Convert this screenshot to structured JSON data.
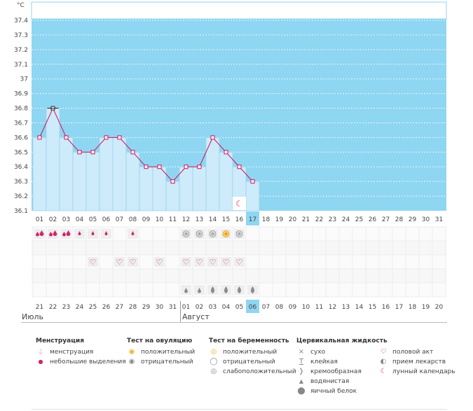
{
  "chart_data": {
    "type": "bar",
    "unit_label": "°C",
    "ylim": [
      36.1,
      37.5
    ],
    "y_ticks": [
      "37.4",
      "37.3",
      "37.2",
      "37.1",
      "37",
      "36.9",
      "36.8",
      "36.7",
      "36.6",
      "36.5",
      "36.4",
      "36.3",
      "36.2",
      "36.1"
    ],
    "cycle_days": [
      "01",
      "02",
      "03",
      "04",
      "05",
      "06",
      "07",
      "08",
      "09",
      "10",
      "11",
      "12",
      "13",
      "14",
      "15",
      "16",
      "17",
      "18",
      "19",
      "20",
      "21",
      "22",
      "23",
      "24",
      "25",
      "26",
      "27",
      "28",
      "29",
      "30",
      "31"
    ],
    "temperatures": [
      36.6,
      36.8,
      36.6,
      36.5,
      36.5,
      36.6,
      36.6,
      36.5,
      36.4,
      36.4,
      36.3,
      36.4,
      36.4,
      36.6,
      36.5,
      36.4,
      36.3
    ],
    "current_day_index": 16,
    "dates": [
      "21",
      "22",
      "23",
      "24",
      "25",
      "26",
      "27",
      "28",
      "29",
      "30",
      "31",
      "01",
      "02",
      "03",
      "04",
      "05",
      "06",
      "07",
      "08",
      "09",
      "10",
      "11",
      "12",
      "13",
      "14",
      "15",
      "16",
      "17",
      "18",
      "19",
      "20"
    ],
    "weekend_date_indices": [
      0,
      6,
      7,
      13,
      14,
      20,
      21,
      27,
      28
    ],
    "current_date_index": 16
  },
  "months": {
    "first": "Июль",
    "second": "Август"
  },
  "rows": {
    "menstruation": [
      "heavy",
      "heavy",
      "heavy",
      "light",
      "light",
      "light",
      "",
      "light"
    ],
    "ovulation_test_indices": [
      11,
      12,
      13,
      14,
      15
    ],
    "ovulation_positive_index": 14,
    "intercourse_indices": [
      4,
      6,
      7,
      9,
      11,
      12,
      13,
      14,
      15
    ],
    "fluid_indices": [
      11,
      12,
      13,
      14,
      15,
      16
    ],
    "lunar_index": 15
  },
  "legend": {
    "menstruation": {
      "title": "Менструация",
      "items": [
        "менструация",
        "небольшие выделения"
      ]
    },
    "ovulation": {
      "title": "Тест на овуляцию",
      "items": [
        "положительный",
        "отрицательный"
      ]
    },
    "pregnancy": {
      "title": "Тест на беременность",
      "items": [
        "положительный",
        "отрицательный",
        "слабоположительный"
      ]
    },
    "fluid": {
      "title": "Цервикальная жидкость",
      "items": [
        "сухо",
        "клейкая",
        "кремообразная",
        "водянистая",
        "яичный белок"
      ]
    },
    "other": {
      "items": [
        "половой акт",
        "прием лекарств",
        "лунный календарь"
      ]
    }
  },
  "colors": {
    "sky": "#8fd6f2",
    "bar": "#cdebfa",
    "bar_border": "#9fd2ea",
    "line": "#d0105a",
    "accent_red": "#d0105a"
  }
}
